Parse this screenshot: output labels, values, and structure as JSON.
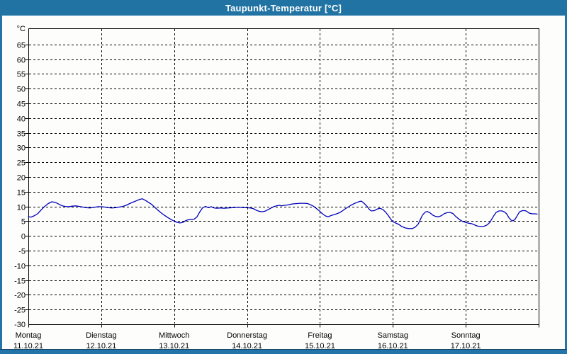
{
  "window": {
    "title": "Taupunkt-Temperatur [°C]"
  },
  "colors": {
    "titlebar": "#2173a4",
    "border": "#2374a8",
    "border_dark": "#16456a",
    "line": "#0000bb",
    "grid": "#000000",
    "frame": "#000000",
    "label": "#000000",
    "plot_background": "#fdfefb"
  },
  "y_axis": {
    "unit_label": "°C",
    "tick_labels": [
      65,
      60,
      55,
      50,
      45,
      40,
      35,
      30,
      25,
      20,
      15,
      10,
      5,
      0,
      -5,
      -10,
      -15,
      -20,
      -25
    ],
    "bottom_label": "-30"
  },
  "x_axis": {
    "days": [
      {
        "name": "Montag",
        "date": "11.10.21"
      },
      {
        "name": "Dienstag",
        "date": "12.10.21"
      },
      {
        "name": "Mittwoch",
        "date": "13.10.21"
      },
      {
        "name": "Donnerstag",
        "date": "14.10.21"
      },
      {
        "name": "Freitag",
        "date": "15.10.21"
      },
      {
        "name": "Samstag",
        "date": "16.10.21"
      },
      {
        "name": "Sonntag",
        "date": "17.10.21"
      }
    ]
  },
  "chart_data": {
    "type": "line",
    "title": "Taupunkt-Temperatur [°C]",
    "ylabel": "°C",
    "ylim": [
      -30,
      70.5
    ],
    "y_gridline_step": 5,
    "x_unit": "days_from_monday_00h",
    "xlim": [
      0,
      7
    ],
    "grid": "dashed",
    "legend": "none",
    "series": [
      {
        "name": "Taupunkt",
        "color": "#0000bb",
        "points": [
          [
            0.0,
            6.5
          ],
          [
            0.039,
            6.4
          ],
          [
            0.078,
            6.8
          ],
          [
            0.126,
            7.5
          ],
          [
            0.175,
            8.8
          ],
          [
            0.224,
            10.0
          ],
          [
            0.272,
            11.0
          ],
          [
            0.321,
            11.6
          ],
          [
            0.369,
            11.4
          ],
          [
            0.418,
            10.8
          ],
          [
            0.467,
            10.2
          ],
          [
            0.506,
            10.0
          ],
          [
            0.554,
            9.9
          ],
          [
            0.603,
            10.1
          ],
          [
            0.651,
            10.2
          ],
          [
            0.7,
            10.0
          ],
          [
            0.749,
            9.8
          ],
          [
            0.797,
            9.6
          ],
          [
            0.846,
            9.5
          ],
          [
            0.894,
            9.7
          ],
          [
            0.953,
            9.9
          ],
          [
            1.001,
            9.9
          ],
          [
            1.05,
            9.8
          ],
          [
            1.099,
            9.6
          ],
          [
            1.147,
            9.5
          ],
          [
            1.196,
            9.6
          ],
          [
            1.244,
            9.8
          ],
          [
            1.293,
            10.0
          ],
          [
            1.342,
            10.4
          ],
          [
            1.39,
            11.0
          ],
          [
            1.439,
            11.5
          ],
          [
            1.488,
            12.0
          ],
          [
            1.527,
            12.4
          ],
          [
            1.565,
            12.6
          ],
          [
            1.604,
            12.1
          ],
          [
            1.643,
            11.5
          ],
          [
            1.692,
            10.7
          ],
          [
            1.731,
            9.8
          ],
          [
            1.77,
            8.9
          ],
          [
            1.818,
            7.9
          ],
          [
            1.867,
            7.0
          ],
          [
            1.915,
            6.2
          ],
          [
            1.964,
            5.5
          ],
          [
            2.003,
            5.0
          ],
          [
            2.042,
            4.6
          ],
          [
            2.081,
            4.4
          ],
          [
            2.12,
            4.6
          ],
          [
            2.159,
            5.2
          ],
          [
            2.197,
            5.5
          ],
          [
            2.236,
            5.6
          ],
          [
            2.275,
            5.7
          ],
          [
            2.314,
            6.5
          ],
          [
            2.353,
            8.2
          ],
          [
            2.392,
            9.6
          ],
          [
            2.431,
            10.0
          ],
          [
            2.47,
            9.6
          ],
          [
            2.508,
            9.9
          ],
          [
            2.547,
            9.5
          ],
          [
            2.586,
            9.4
          ],
          [
            2.635,
            9.5
          ],
          [
            2.683,
            9.4
          ],
          [
            2.742,
            9.5
          ],
          [
            2.8,
            9.6
          ],
          [
            2.858,
            9.7
          ],
          [
            2.917,
            9.7
          ],
          [
            2.956,
            9.6
          ],
          [
            2.995,
            9.6
          ],
          [
            3.043,
            9.5
          ],
          [
            3.082,
            9.3
          ],
          [
            3.121,
            8.8
          ],
          [
            3.16,
            8.4
          ],
          [
            3.208,
            8.2
          ],
          [
            3.247,
            8.4
          ],
          [
            3.286,
            8.9
          ],
          [
            3.325,
            9.4
          ],
          [
            3.364,
            9.9
          ],
          [
            3.403,
            10.2
          ],
          [
            3.442,
            10.4
          ],
          [
            3.471,
            10.2
          ],
          [
            3.51,
            10.4
          ],
          [
            3.549,
            10.5
          ],
          [
            3.588,
            10.7
          ],
          [
            3.636,
            10.9
          ],
          [
            3.685,
            11.0
          ],
          [
            3.733,
            11.1
          ],
          [
            3.782,
            11.1
          ],
          [
            3.831,
            11.0
          ],
          [
            3.869,
            10.6
          ],
          [
            3.908,
            10.1
          ],
          [
            3.947,
            9.4
          ],
          [
            3.996,
            8.4
          ],
          [
            4.035,
            7.5
          ],
          [
            4.074,
            6.8
          ],
          [
            4.112,
            6.5
          ],
          [
            4.151,
            6.9
          ],
          [
            4.19,
            7.2
          ],
          [
            4.229,
            7.5
          ],
          [
            4.268,
            7.9
          ],
          [
            4.307,
            8.5
          ],
          [
            4.346,
            9.2
          ],
          [
            4.385,
            9.8
          ],
          [
            4.424,
            10.4
          ],
          [
            4.462,
            10.9
          ],
          [
            4.501,
            11.3
          ],
          [
            4.54,
            11.7
          ],
          [
            4.569,
            11.8
          ],
          [
            4.608,
            11.0
          ],
          [
            4.647,
            10.0
          ],
          [
            4.676,
            9.0
          ],
          [
            4.705,
            8.5
          ],
          [
            4.744,
            8.6
          ],
          [
            4.783,
            9.1
          ],
          [
            4.822,
            9.4
          ],
          [
            4.861,
            9.0
          ],
          [
            4.9,
            8.1
          ],
          [
            4.938,
            6.9
          ],
          [
            4.968,
            5.8
          ],
          [
            4.997,
            4.9
          ],
          [
            5.036,
            4.4
          ],
          [
            5.075,
            4.0
          ],
          [
            5.123,
            3.2
          ],
          [
            5.172,
            2.7
          ],
          [
            5.22,
            2.5
          ],
          [
            5.269,
            2.5
          ],
          [
            5.308,
            3.0
          ],
          [
            5.347,
            4.0
          ],
          [
            5.376,
            5.5
          ],
          [
            5.405,
            7.0
          ],
          [
            5.444,
            8.1
          ],
          [
            5.474,
            8.3
          ],
          [
            5.512,
            7.8
          ],
          [
            5.551,
            7.0
          ],
          [
            5.59,
            6.6
          ],
          [
            5.629,
            6.5
          ],
          [
            5.668,
            6.9
          ],
          [
            5.707,
            7.6
          ],
          [
            5.746,
            7.9
          ],
          [
            5.785,
            8.0
          ],
          [
            5.824,
            7.6
          ],
          [
            5.863,
            6.6
          ],
          [
            5.911,
            5.6
          ],
          [
            5.95,
            5.0
          ],
          [
            5.999,
            4.6
          ],
          [
            6.038,
            4.3
          ],
          [
            6.077,
            4.2
          ],
          [
            6.115,
            3.8
          ],
          [
            6.154,
            3.4
          ],
          [
            6.203,
            3.2
          ],
          [
            6.252,
            3.3
          ],
          [
            6.291,
            3.7
          ],
          [
            6.33,
            4.6
          ],
          [
            6.359,
            5.8
          ],
          [
            6.388,
            7.0
          ],
          [
            6.417,
            8.0
          ],
          [
            6.456,
            8.5
          ],
          [
            6.495,
            8.5
          ],
          [
            6.534,
            8.1
          ],
          [
            6.563,
            7.4
          ],
          [
            6.592,
            6.2
          ],
          [
            6.621,
            5.4
          ],
          [
            6.65,
            5.1
          ],
          [
            6.68,
            5.8
          ],
          [
            6.709,
            7.0
          ],
          [
            6.738,
            8.2
          ],
          [
            6.777,
            8.6
          ],
          [
            6.815,
            8.6
          ],
          [
            6.845,
            8.2
          ],
          [
            6.874,
            7.7
          ],
          [
            6.913,
            7.5
          ],
          [
            6.952,
            7.5
          ],
          [
            6.981,
            7.4
          ]
        ]
      }
    ]
  }
}
